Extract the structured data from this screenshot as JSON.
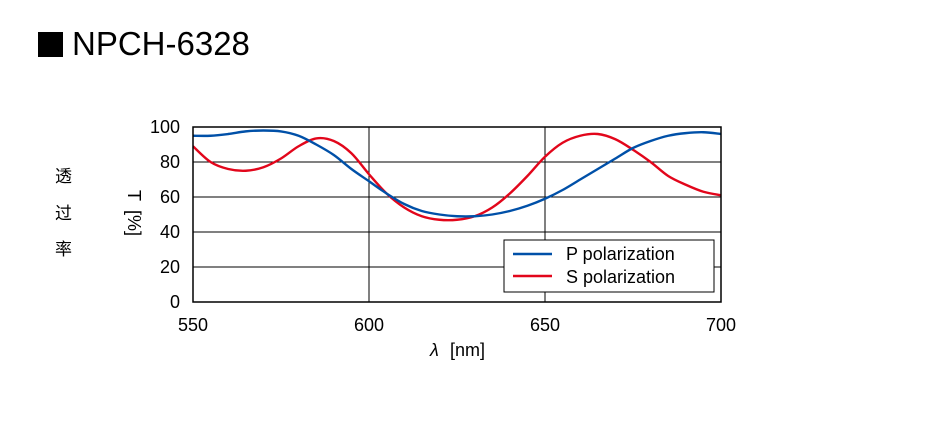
{
  "page": {
    "title": "NPCH-6328"
  },
  "chart_data": {
    "type": "line",
    "title": "",
    "xlabel_symbol": "λ",
    "xlabel_unit": "[nm]",
    "ylabel_unit": "[%]",
    "ylabel_symbol": "T",
    "ylabel_cjk": [
      "透",
      "过",
      "率"
    ],
    "xlim": [
      550,
      700
    ],
    "ylim": [
      0,
      100
    ],
    "xticks": [
      550,
      600,
      650,
      700
    ],
    "yticks": [
      0,
      20,
      40,
      60,
      80,
      100
    ],
    "grid": true,
    "legend_position": "bottom-right",
    "series": [
      {
        "name": "P polarization",
        "color": "#0050a8",
        "x": [
          550,
          555,
          560,
          565,
          570,
          575,
          580,
          585,
          590,
          595,
          600,
          605,
          610,
          615,
          620,
          625,
          630,
          635,
          640,
          645,
          650,
          655,
          660,
          665,
          670,
          675,
          680,
          685,
          690,
          695,
          700
        ],
        "y": [
          95,
          95,
          96,
          97.5,
          98,
          97.5,
          95,
          90,
          84,
          76,
          69,
          62,
          56,
          52,
          50,
          49,
          49,
          50,
          52,
          55,
          59,
          64,
          70,
          76,
          82,
          88,
          92,
          95,
          96.5,
          97,
          96
        ]
      },
      {
        "name": "S polarization",
        "color": "#e2061b",
        "x": [
          550,
          555,
          560,
          565,
          570,
          575,
          580,
          585,
          590,
          595,
          600,
          605,
          610,
          615,
          620,
          625,
          630,
          635,
          640,
          645,
          650,
          655,
          660,
          665,
          670,
          675,
          680,
          685,
          690,
          695,
          700
        ],
        "y": [
          89,
          80,
          76,
          75,
          77,
          82,
          89,
          93.5,
          92,
          85,
          73,
          62,
          54,
          49,
          47,
          47,
          49,
          54,
          62,
          72,
          83,
          91,
          95,
          96,
          93,
          87,
          80,
          72,
          67,
          63,
          61
        ]
      }
    ]
  }
}
